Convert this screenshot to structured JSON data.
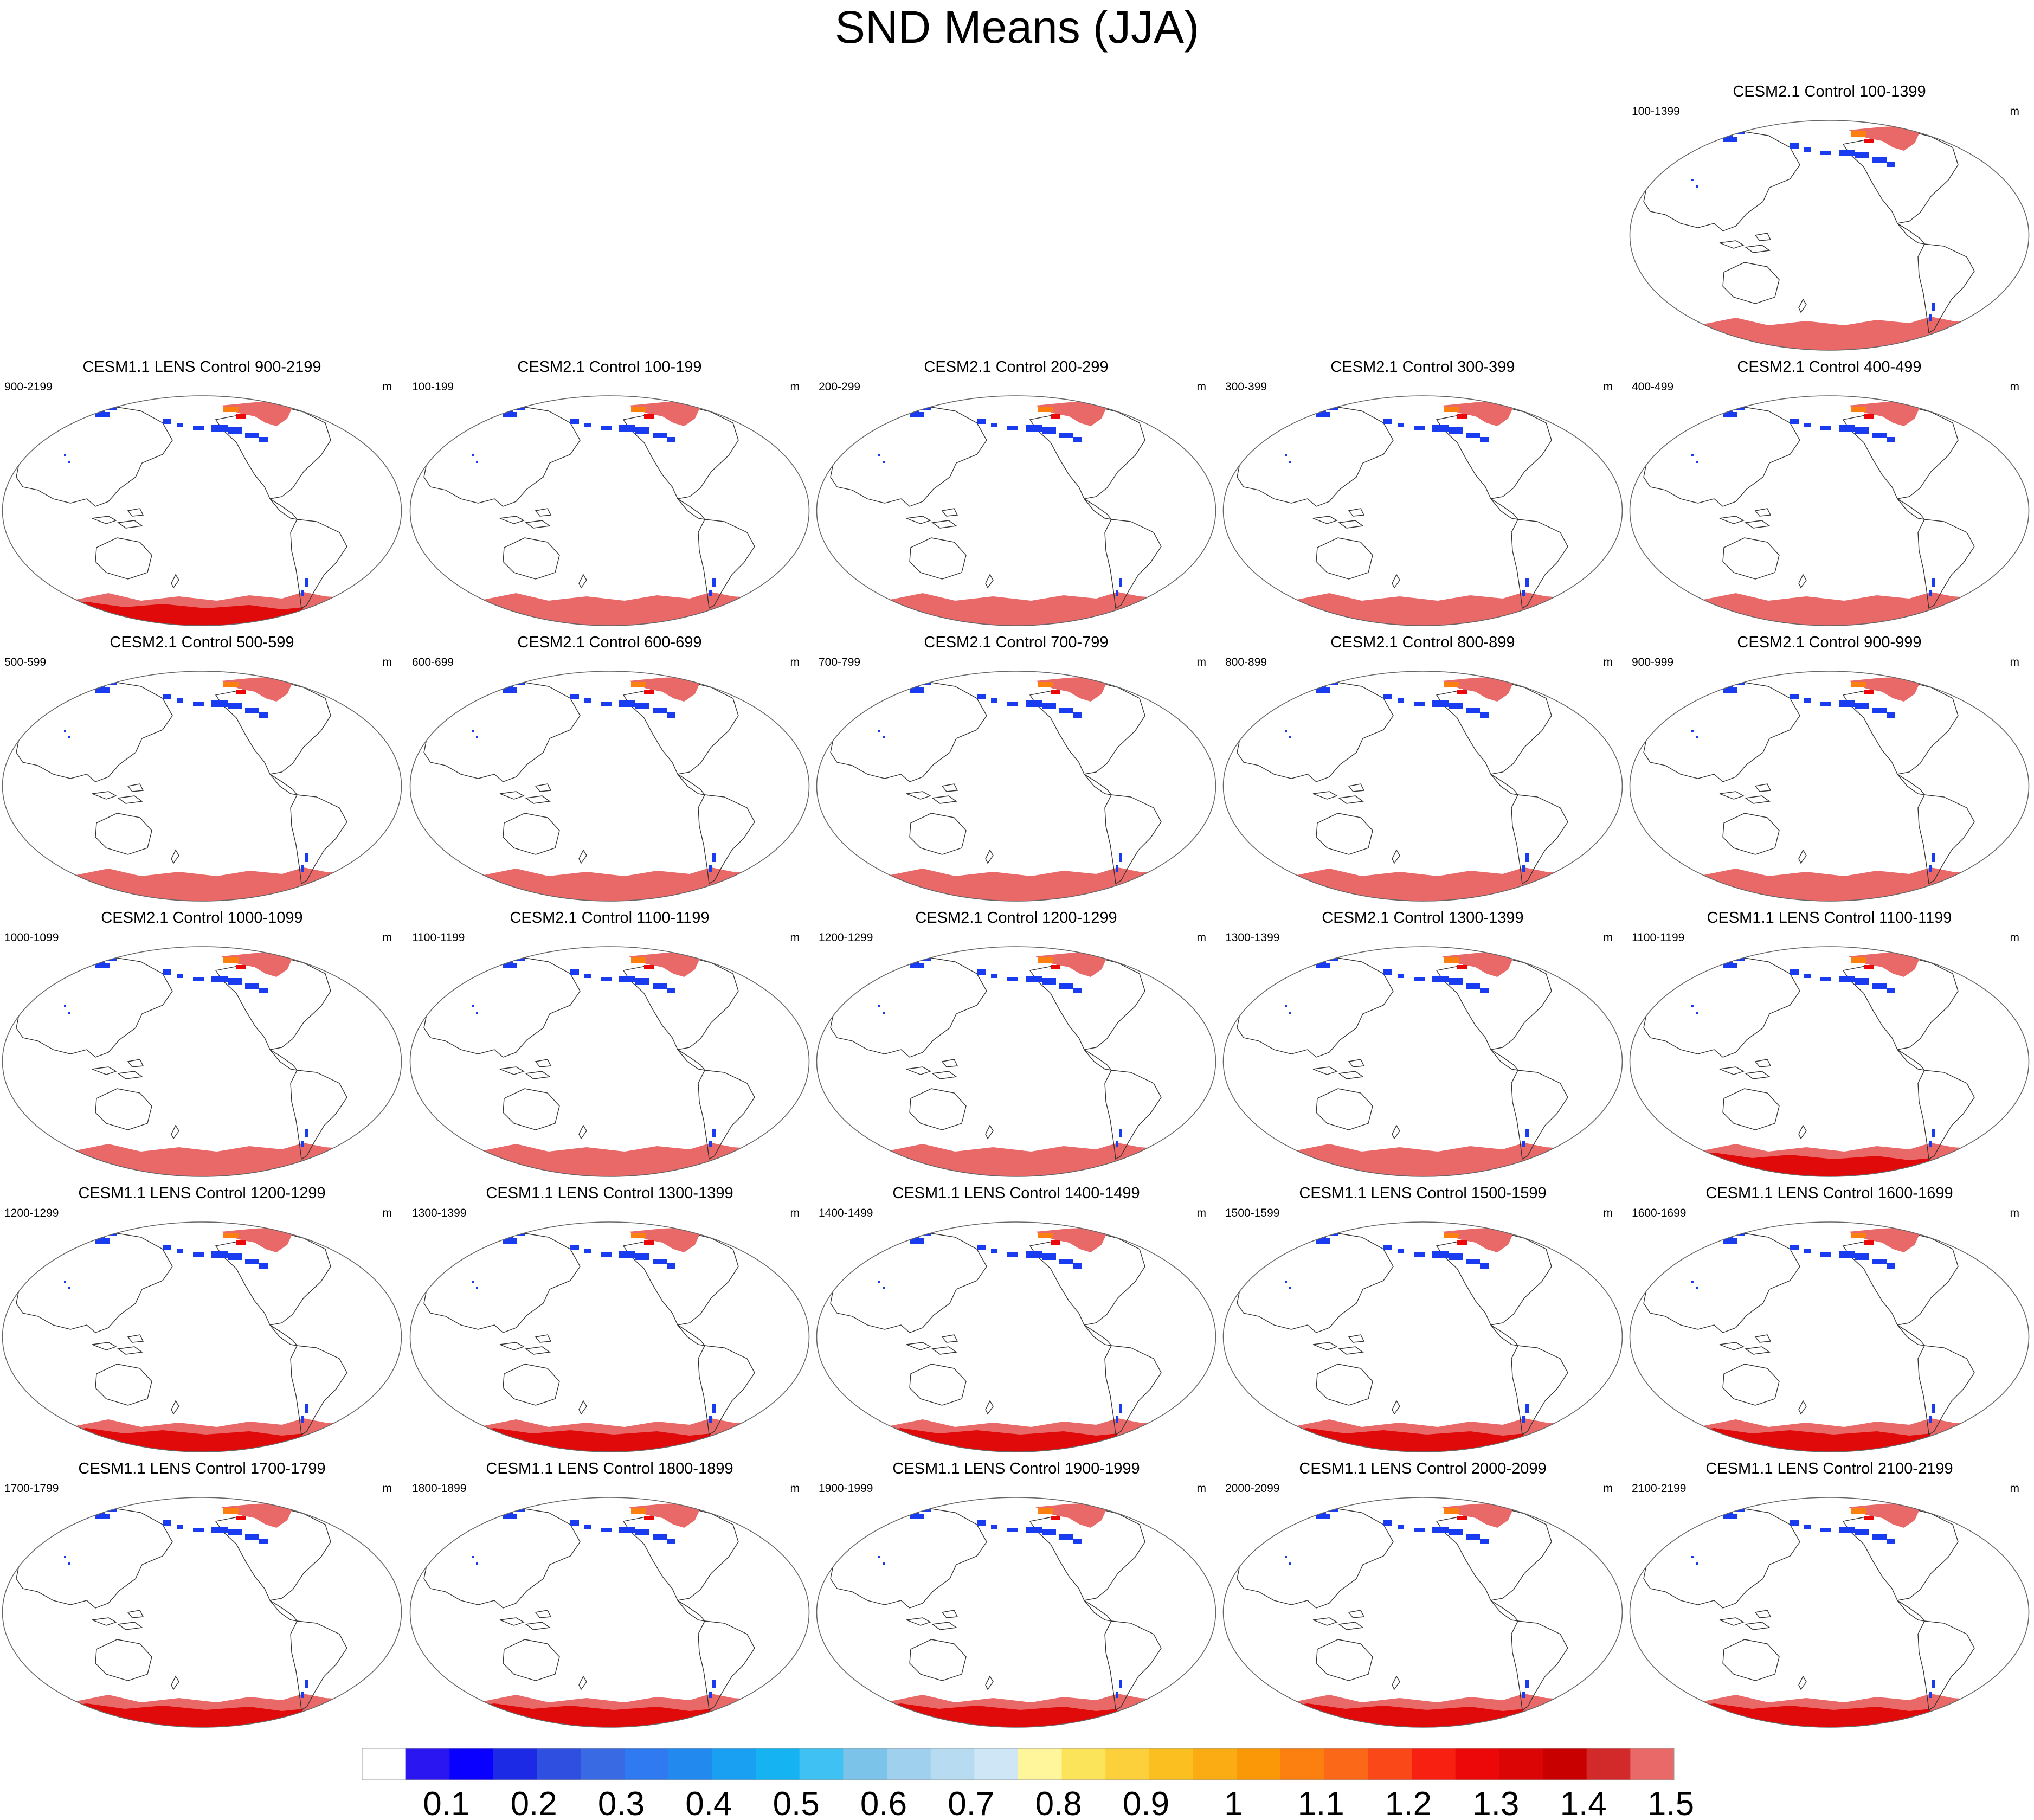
{
  "title": "SND Means (JJA)",
  "colorbar": {
    "labels": [
      "0.1",
      "0.2",
      "0.3",
      "0.4",
      "0.5",
      "0.6",
      "0.7",
      "0.8",
      "0.9",
      "1",
      "1.1",
      "1.2",
      "1.3",
      "1.4",
      "1.5"
    ],
    "colors": [
      "#ffffff",
      "#2a16f0",
      "#0a00ff",
      "#1c2ae6",
      "#2e4fe0",
      "#3a69e4",
      "#2f7af0",
      "#2289ef",
      "#1aa0f2",
      "#16b3f2",
      "#3fc1f3",
      "#7cc3ea",
      "#9fd0ee",
      "#b7dcf2",
      "#cfe6f7",
      "#fff59a",
      "#fbe45a",
      "#fbd03a",
      "#fbc020",
      "#fbac12",
      "#fb9808",
      "#fb8010",
      "#fb6818",
      "#fb4818",
      "#f82010",
      "#ec0808",
      "#dc0505",
      "#c80000",
      "#d22a2a",
      "#e96969"
    ]
  },
  "colors": {
    "antarctica_light": "#e96969",
    "antarctica_dark": "#e00a0a",
    "snow_blue": "#1a3cf0",
    "snow_orange": "#fb8010",
    "coast": "#333333"
  },
  "chart_data": [
    {
      "type": "heatmap",
      "title": "CESM2.1 Control 100-1399",
      "left": "100-1399",
      "right": "m",
      "model": "CESM2.1"
    },
    {
      "type": "heatmap",
      "title": "CESM1.1 LENS Control 900-2199",
      "left": "900-2199",
      "right": "m",
      "model": "CESM1.1"
    },
    {
      "type": "heatmap",
      "title": "CESM2.1 Control 100-199",
      "left": "100-199",
      "right": "m",
      "model": "CESM2.1"
    },
    {
      "type": "heatmap",
      "title": "CESM2.1 Control 200-299",
      "left": "200-299",
      "right": "m",
      "model": "CESM2.1"
    },
    {
      "type": "heatmap",
      "title": "CESM2.1 Control 300-399",
      "left": "300-399",
      "right": "m",
      "model": "CESM2.1"
    },
    {
      "type": "heatmap",
      "title": "CESM2.1 Control 400-499",
      "left": "400-499",
      "right": "m",
      "model": "CESM2.1"
    },
    {
      "type": "heatmap",
      "title": "CESM2.1 Control 500-599",
      "left": "500-599",
      "right": "m",
      "model": "CESM2.1"
    },
    {
      "type": "heatmap",
      "title": "CESM2.1 Control 600-699",
      "left": "600-699",
      "right": "m",
      "model": "CESM2.1"
    },
    {
      "type": "heatmap",
      "title": "CESM2.1 Control 700-799",
      "left": "700-799",
      "right": "m",
      "model": "CESM2.1"
    },
    {
      "type": "heatmap",
      "title": "CESM2.1 Control 800-899",
      "left": "800-899",
      "right": "m",
      "model": "CESM2.1"
    },
    {
      "type": "heatmap",
      "title": "CESM2.1 Control 900-999",
      "left": "900-999",
      "right": "m",
      "model": "CESM2.1"
    },
    {
      "type": "heatmap",
      "title": "CESM2.1 Control 1000-1099",
      "left": "1000-1099",
      "right": "m",
      "model": "CESM2.1"
    },
    {
      "type": "heatmap",
      "title": "CESM2.1 Control 1100-1199",
      "left": "1100-1199",
      "right": "m",
      "model": "CESM2.1"
    },
    {
      "type": "heatmap",
      "title": "CESM2.1 Control 1200-1299",
      "left": "1200-1299",
      "right": "m",
      "model": "CESM2.1"
    },
    {
      "type": "heatmap",
      "title": "CESM2.1 Control 1300-1399",
      "left": "1300-1399",
      "right": "m",
      "model": "CESM2.1"
    },
    {
      "type": "heatmap",
      "title": "CESM1.1 LENS Control 1100-1199",
      "left": "1100-1199",
      "right": "m",
      "model": "CESM1.1"
    },
    {
      "type": "heatmap",
      "title": "CESM1.1 LENS Control 1200-1299",
      "left": "1200-1299",
      "right": "m",
      "model": "CESM1.1"
    },
    {
      "type": "heatmap",
      "title": "CESM1.1 LENS Control 1300-1399",
      "left": "1300-1399",
      "right": "m",
      "model": "CESM1.1"
    },
    {
      "type": "heatmap",
      "title": "CESM1.1 LENS Control 1400-1499",
      "left": "1400-1499",
      "right": "m",
      "model": "CESM1.1"
    },
    {
      "type": "heatmap",
      "title": "CESM1.1 LENS Control 1500-1599",
      "left": "1500-1599",
      "right": "m",
      "model": "CESM1.1"
    },
    {
      "type": "heatmap",
      "title": "CESM1.1 LENS Control 1600-1699",
      "left": "1600-1699",
      "right": "m",
      "model": "CESM1.1"
    },
    {
      "type": "heatmap",
      "title": "CESM1.1 LENS Control 1700-1799",
      "left": "1700-1799",
      "right": "m",
      "model": "CESM1.1"
    },
    {
      "type": "heatmap",
      "title": "CESM1.1 LENS Control 1800-1899",
      "left": "1800-1899",
      "right": "m",
      "model": "CESM1.1"
    },
    {
      "type": "heatmap",
      "title": "CESM1.1 LENS Control 1900-1999",
      "left": "1900-1999",
      "right": "m",
      "model": "CESM1.1"
    },
    {
      "type": "heatmap",
      "title": "CESM1.1 LENS Control 2000-2099",
      "left": "2000-2099",
      "right": "m",
      "model": "CESM1.1"
    },
    {
      "type": "heatmap",
      "title": "CESM1.1 LENS Control 2100-2199",
      "left": "2100-2199",
      "right": "m",
      "model": "CESM1.1"
    }
  ]
}
